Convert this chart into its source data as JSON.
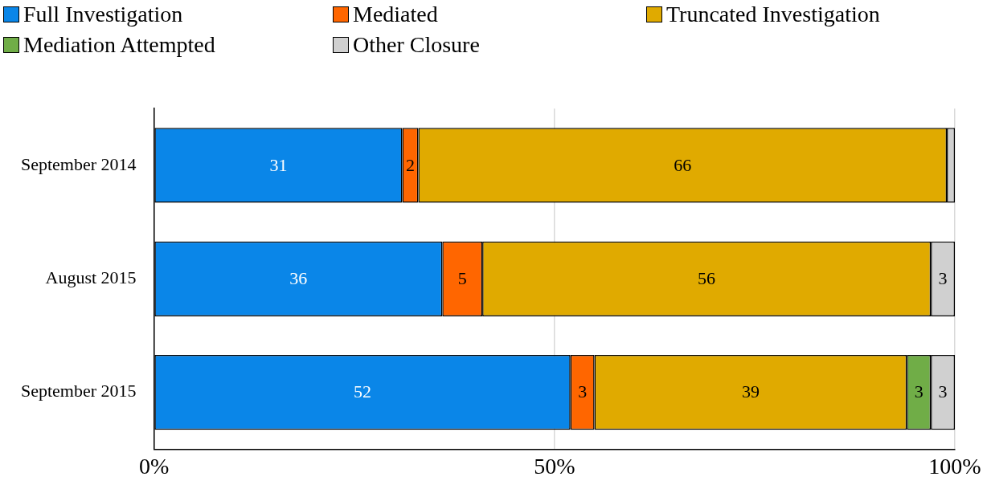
{
  "chart_data": {
    "type": "bar",
    "orientation": "horizontal",
    "stacked": true,
    "categories": [
      "September 2014",
      "August 2015",
      "September 2015"
    ],
    "series": [
      {
        "name": "Full Investigation",
        "color": "#0a86e8",
        "values": [
          31,
          36,
          52
        ],
        "value_labels": [
          "31",
          "36",
          "52"
        ]
      },
      {
        "name": "Mediated",
        "color": "#ff6600",
        "values": [
          2,
          5,
          3
        ],
        "value_labels": [
          "2",
          "5",
          "3"
        ]
      },
      {
        "name": "Truncated Investigation",
        "color": "#e0aa00",
        "values": [
          66,
          56,
          39
        ],
        "value_labels": [
          "66",
          "56",
          "39"
        ]
      },
      {
        "name": "Mediation Attempted",
        "color": "#70ad47",
        "values": [
          null,
          null,
          3
        ],
        "value_labels": [
          null,
          null,
          "3"
        ]
      },
      {
        "name": "Other Closure",
        "color": "#d0d0d0",
        "values": [
          1,
          3,
          3
        ],
        "value_labels": [
          null,
          "3",
          "3"
        ]
      }
    ],
    "xlim": [
      0,
      100
    ],
    "xticks": [
      {
        "value": 0,
        "label": "0%"
      },
      {
        "value": 50,
        "label": "50%"
      },
      {
        "value": 100,
        "label": "100%"
      }
    ],
    "grid": "x",
    "legend": "top left"
  }
}
